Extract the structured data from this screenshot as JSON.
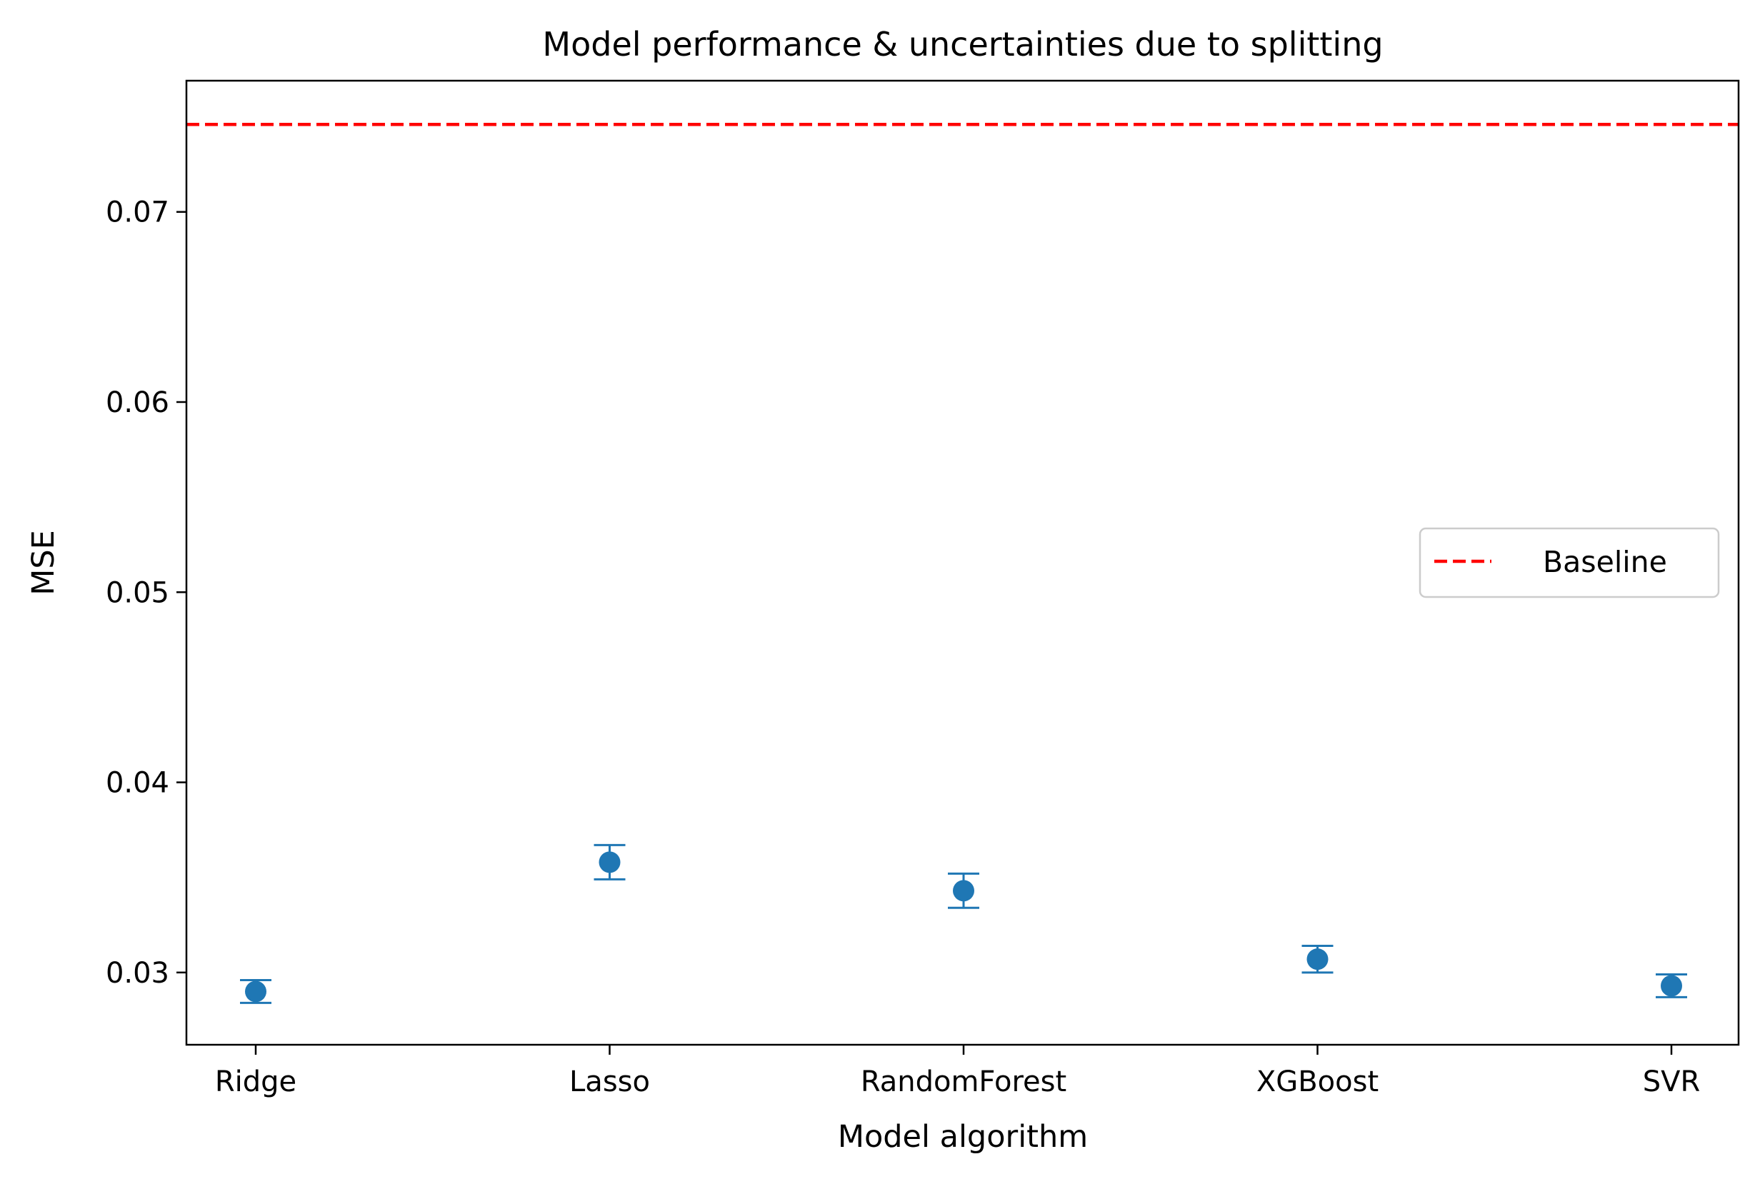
{
  "chart_data": {
    "type": "scatter",
    "title": "Model performance & uncertainties due to splitting",
    "xlabel": "Model algorithm",
    "ylabel": "MSE",
    "categories": [
      "Ridge",
      "Lasso",
      "RandomForest",
      "XGBoost",
      "SVR"
    ],
    "series": [
      {
        "values": [
          0.029,
          0.0358,
          0.0343,
          0.0307,
          0.0293
        ],
        "errors": [
          0.0006,
          0.0009,
          0.0009,
          0.0007,
          0.0006
        ],
        "color": "#1f77b4",
        "marker": "circle-with-errorbars"
      }
    ],
    "baseline": {
      "name": "Baseline",
      "value": 0.0746,
      "color": "#ff0000",
      "style": "dashed"
    },
    "ylim": [
      0.0262,
      0.0769
    ],
    "yticks": [
      0.03,
      0.04,
      0.05,
      0.06,
      0.07
    ],
    "ytick_labels": [
      "0.03",
      "0.04",
      "0.05",
      "0.06",
      "0.07"
    ],
    "grid": false,
    "legend": {
      "placement": "right",
      "entries": [
        "Baseline"
      ]
    }
  }
}
